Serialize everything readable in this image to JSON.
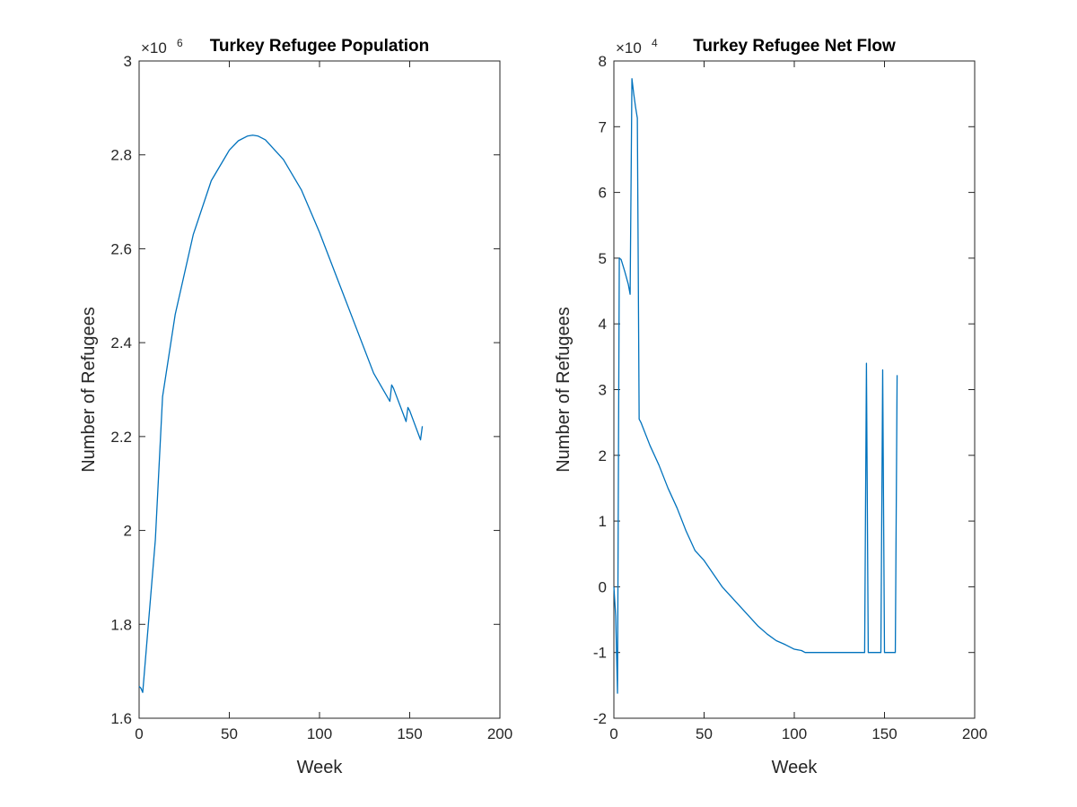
{
  "chart_data": [
    {
      "type": "line",
      "title": "Turkey Refugee Population",
      "xlabel": "Week",
      "ylabel": "Number of Refugees",
      "multiplier": "×10",
      "multiplier_exponent": "6",
      "scale": 1000000,
      "xlim": [
        0,
        200
      ],
      "ylim": [
        1.6,
        3.0
      ],
      "xticks": [
        0,
        50,
        100,
        150,
        200
      ],
      "xtick_labels": [
        "0",
        "50",
        "100",
        "150",
        "200"
      ],
      "yticks": [
        1.6,
        1.8,
        2.0,
        2.2,
        2.4,
        2.6,
        2.8,
        3.0
      ],
      "ytick_labels": [
        "1.6",
        "1.8",
        "2",
        "2.2",
        "2.4",
        "2.6",
        "2.8",
        "3"
      ],
      "grid": false,
      "color": "#0072bd",
      "series": [
        {
          "x": [
            0,
            1,
            2,
            9,
            13,
            20,
            30,
            40,
            50,
            55,
            60,
            63,
            66,
            70,
            80,
            90,
            100,
            110,
            120,
            130,
            139,
            140,
            141,
            148,
            149,
            150,
            156,
            157
          ],
          "y": [
            1.668,
            1.664,
            1.655,
            1.98,
            2.285,
            2.46,
            2.63,
            2.745,
            2.81,
            2.83,
            2.84,
            2.842,
            2.84,
            2.832,
            2.79,
            2.725,
            2.635,
            2.535,
            2.435,
            2.335,
            2.275,
            2.31,
            2.303,
            2.232,
            2.262,
            2.255,
            2.193,
            2.222
          ]
        }
      ]
    },
    {
      "type": "line",
      "title": "Turkey Refugee Net Flow",
      "xlabel": "Week",
      "ylabel": "Number of Refugees",
      "multiplier": "×10",
      "multiplier_exponent": "4",
      "scale": 10000,
      "xlim": [
        0,
        200
      ],
      "ylim": [
        -2,
        8
      ],
      "xticks": [
        0,
        50,
        100,
        150,
        200
      ],
      "xtick_labels": [
        "0",
        "50",
        "100",
        "150",
        "200"
      ],
      "yticks": [
        -2,
        -1,
        0,
        1,
        2,
        3,
        4,
        5,
        6,
        7,
        8
      ],
      "ytick_labels": [
        "-2",
        "-1",
        "0",
        "1",
        "2",
        "3",
        "4",
        "5",
        "6",
        "7",
        "8"
      ],
      "grid": false,
      "color": "#0072bd",
      "series": [
        {
          "x": [
            0,
            1,
            2,
            3,
            4,
            6,
            8,
            9,
            10,
            11,
            12,
            13,
            14,
            15,
            20,
            25,
            30,
            35,
            40,
            45,
            50,
            55,
            60,
            65,
            70,
            75,
            80,
            85,
            90,
            95,
            100,
            104,
            106,
            110,
            120,
            130,
            138,
            139,
            140,
            141,
            145,
            148,
            149,
            150,
            152,
            155,
            156,
            157
          ],
          "y": [
            0,
            -0.45,
            -1.62,
            5.0,
            4.98,
            4.8,
            4.6,
            4.45,
            7.73,
            7.5,
            7.3,
            7.13,
            2.55,
            2.5,
            2.15,
            1.85,
            1.5,
            1.2,
            0.85,
            0.55,
            0.4,
            0.2,
            0.0,
            -0.15,
            -0.3,
            -0.45,
            -0.6,
            -0.72,
            -0.82,
            -0.88,
            -0.95,
            -0.97,
            -1.0,
            -1.0,
            -1.0,
            -1.0,
            -1.0,
            -1.0,
            3.4,
            -1.0,
            -1.0,
            -1.0,
            3.3,
            -1.0,
            -1.0,
            -1.0,
            -1.0,
            3.22
          ]
        }
      ]
    }
  ]
}
